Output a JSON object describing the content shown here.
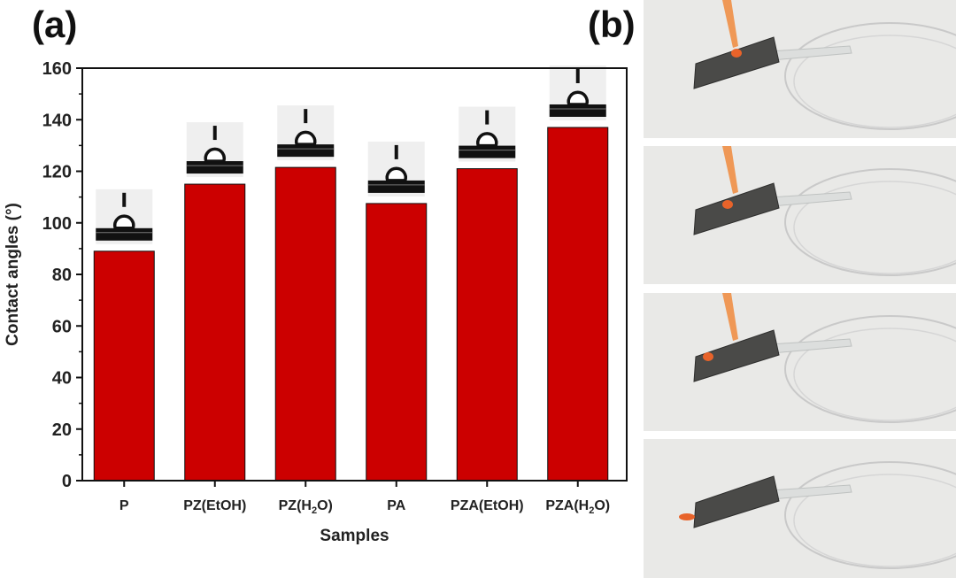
{
  "panels": {
    "a": "(a)",
    "b": "(b)"
  },
  "chart_data": {
    "type": "bar",
    "categories": [
      "P",
      "PZ(EtOH)",
      "PZ(H2O)",
      "PA",
      "PZA(EtOH)",
      "PZA(H2O)"
    ],
    "values": [
      89,
      115,
      121.5,
      107.5,
      121,
      137
    ],
    "xlabel": "Samples",
    "ylabel": "Contact angles (°)",
    "ylim": [
      0,
      160
    ],
    "yticks": [
      0,
      20,
      40,
      60,
      80,
      100,
      120,
      140,
      160
    ],
    "bar_color": "#cc0000",
    "legend": "none",
    "grid": false
  },
  "colors": {
    "bar": "#cc0000",
    "droplet": "#e8632a",
    "substrate": "#4a4a48"
  },
  "photos": [
    {
      "icon": "dropper-on-coated-glass-photo"
    },
    {
      "icon": "dropper-on-coated-glass-photo"
    },
    {
      "icon": "dropper-on-coated-glass-photo"
    },
    {
      "icon": "droplet-rolled-off-photo"
    }
  ]
}
